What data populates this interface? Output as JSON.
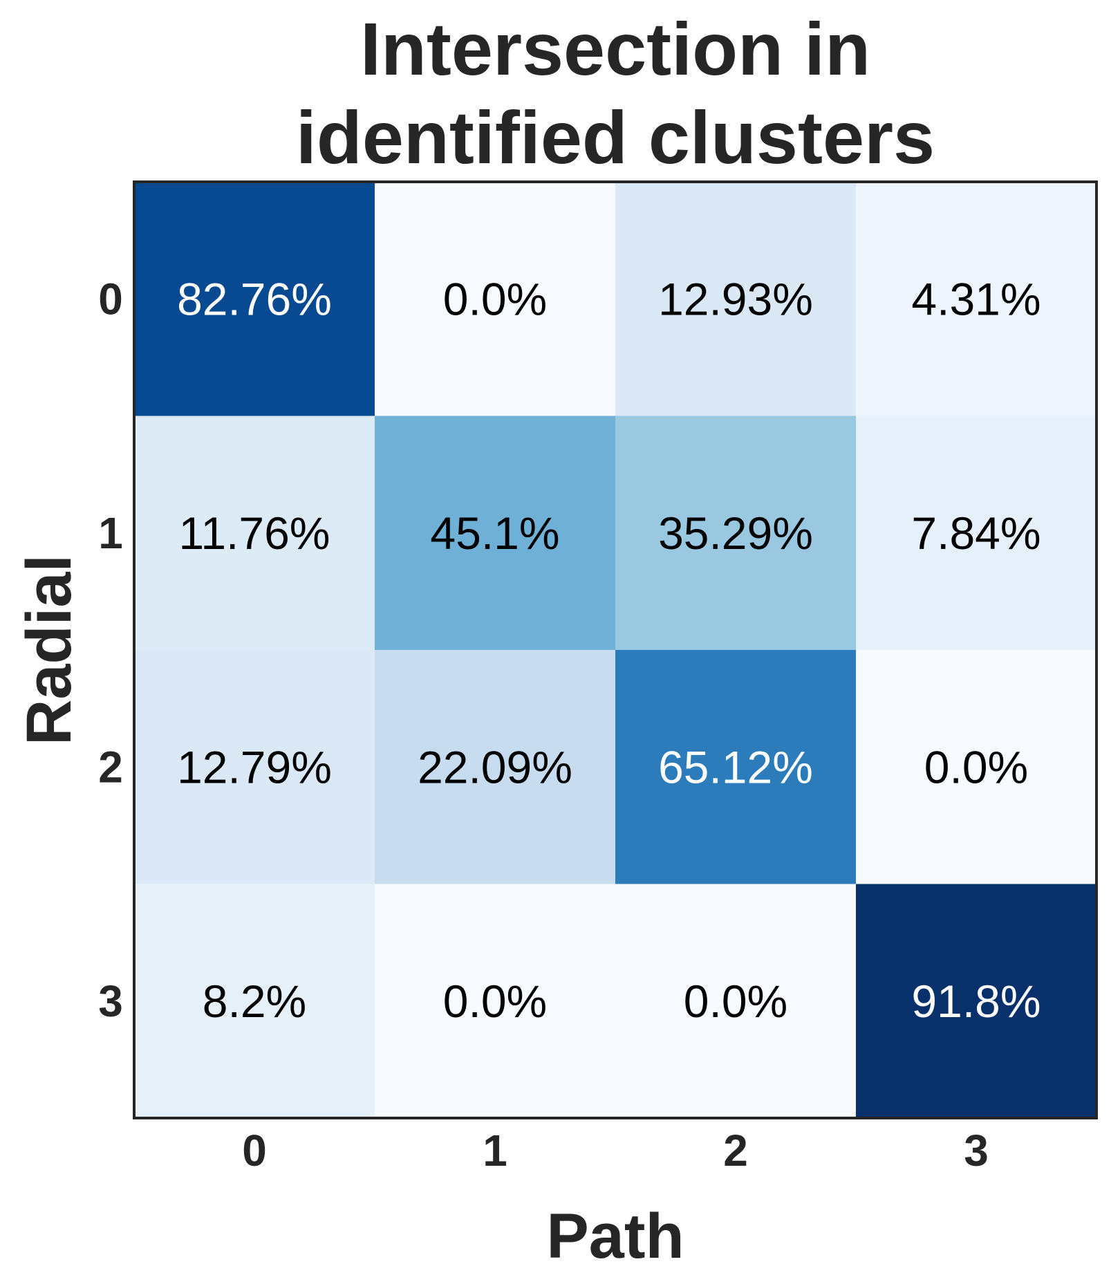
{
  "chart_data": {
    "type": "heatmap",
    "title_lines": [
      "Intersection in",
      "identified clusters"
    ],
    "xlabel": "Path",
    "ylabel": "Radial",
    "x_categories": [
      "0",
      "1",
      "2",
      "3"
    ],
    "y_categories": [
      "0",
      "1",
      "2",
      "3"
    ],
    "values": [
      [
        82.76,
        0.0,
        12.93,
        4.31
      ],
      [
        11.76,
        45.1,
        35.29,
        7.84
      ],
      [
        12.79,
        22.09,
        65.12,
        0.0
      ],
      [
        8.2,
        0.0,
        0.0,
        91.8
      ]
    ],
    "cell_labels": [
      [
        "82.76%",
        "0.0%",
        "12.93%",
        "4.31%"
      ],
      [
        "11.76%",
        "45.1%",
        "35.29%",
        "7.84%"
      ],
      [
        "12.79%",
        "22.09%",
        "65.12%",
        "0.0%"
      ],
      [
        "8.2%",
        "0.0%",
        "0.0%",
        "91.8%"
      ]
    ],
    "colormap": "Blues",
    "vmin": 0,
    "vmax": 91.8,
    "grid": false,
    "legend": "none",
    "colors": {
      "frame": "#262626",
      "text_dark": "#000000",
      "text_light": "#ffffff"
    }
  }
}
